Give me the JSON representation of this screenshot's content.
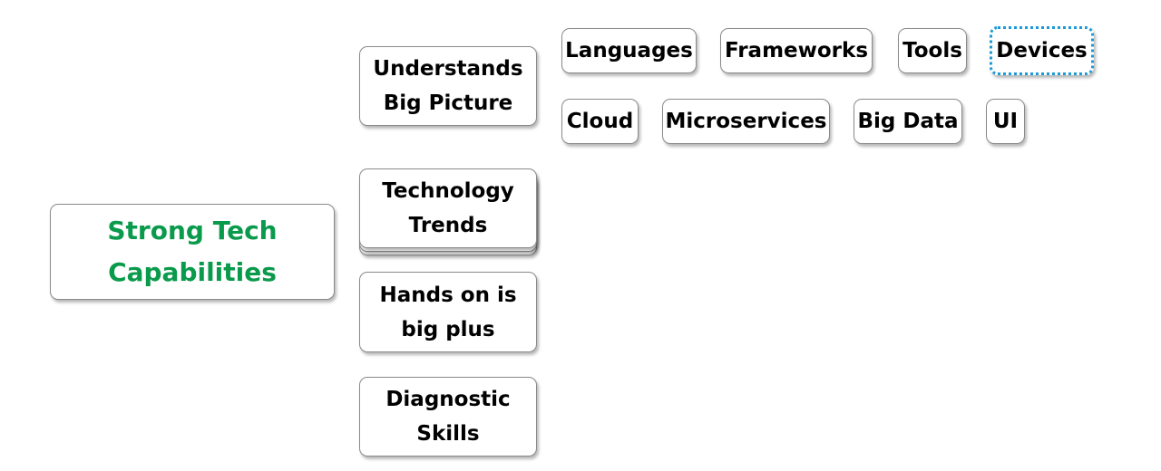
{
  "root": {
    "line1": "Strong Tech",
    "line2": "Capabilities"
  },
  "children": [
    {
      "line1": "Understands",
      "line2": "Big Picture"
    },
    {
      "line1": "Technology",
      "line2": "Trends"
    },
    {
      "line1": "Hands on is",
      "line2": "big plus"
    },
    {
      "line1": "Diagnostic",
      "line2": "Skills"
    }
  ],
  "topics": [
    {
      "label": "Languages"
    },
    {
      "label": "Frameworks"
    },
    {
      "label": "Tools"
    },
    {
      "label": "Devices",
      "selected": true
    },
    {
      "label": "Cloud"
    },
    {
      "label": "Microservices"
    },
    {
      "label": "Big Data"
    },
    {
      "label": "UI"
    }
  ],
  "colors": {
    "root_text": "#0a9a4c",
    "selection": "#1a9ad6",
    "border": "#8a8a8a"
  }
}
